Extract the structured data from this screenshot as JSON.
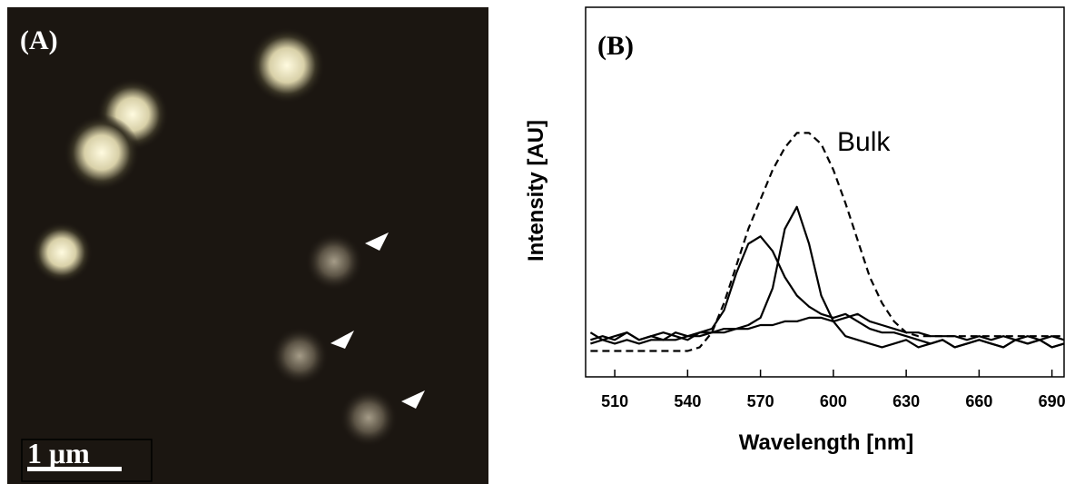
{
  "panel_a": {
    "label": "(A)",
    "scale_bar": "1 μm"
  },
  "chart_data": {
    "type": "line",
    "label": "(B)",
    "annotation": "Bulk",
    "xlabel": "Wavelength [nm]",
    "ylabel": "Intensity [AU]",
    "xlim": [
      498,
      695
    ],
    "xticks": [
      510,
      540,
      570,
      600,
      630,
      660,
      690
    ],
    "ylim": [
      0,
      1
    ],
    "x": [
      500,
      505,
      510,
      515,
      520,
      525,
      530,
      535,
      540,
      545,
      550,
      555,
      560,
      565,
      570,
      575,
      580,
      585,
      590,
      595,
      600,
      605,
      610,
      615,
      620,
      625,
      630,
      635,
      640,
      645,
      650,
      655,
      660,
      665,
      670,
      675,
      680,
      685,
      690,
      695
    ],
    "series": [
      {
        "color": "#000",
        "dashed": true,
        "values": [
          0.07,
          0.07,
          0.07,
          0.07,
          0.07,
          0.07,
          0.07,
          0.07,
          0.07,
          0.08,
          0.12,
          0.2,
          0.3,
          0.4,
          0.48,
          0.56,
          0.62,
          0.66,
          0.66,
          0.63,
          0.56,
          0.47,
          0.37,
          0.27,
          0.2,
          0.15,
          0.12,
          0.11,
          0.11,
          0.11,
          0.11,
          0.11,
          0.11,
          0.11,
          0.11,
          0.11,
          0.11,
          0.11,
          0.11,
          0.11
        ]
      },
      {
        "color": "#000",
        "dashed": false,
        "values": [
          0.12,
          0.1,
          0.11,
          0.12,
          0.1,
          0.11,
          0.12,
          0.11,
          0.1,
          0.12,
          0.13,
          0.18,
          0.28,
          0.36,
          0.38,
          0.34,
          0.27,
          0.22,
          0.19,
          0.17,
          0.16,
          0.17,
          0.15,
          0.13,
          0.12,
          0.12,
          0.11,
          0.1,
          0.09,
          0.1,
          0.08,
          0.09,
          0.1,
          0.09,
          0.08,
          0.1,
          0.09,
          0.1,
          0.08,
          0.09
        ]
      },
      {
        "color": "#000",
        "dashed": false,
        "values": [
          0.1,
          0.11,
          0.1,
          0.12,
          0.1,
          0.11,
          0.1,
          0.12,
          0.11,
          0.12,
          0.12,
          0.13,
          0.13,
          0.14,
          0.16,
          0.24,
          0.4,
          0.46,
          0.36,
          0.22,
          0.15,
          0.11,
          0.1,
          0.09,
          0.08,
          0.09,
          0.1,
          0.08,
          0.09,
          0.1,
          0.08,
          0.09,
          0.1,
          0.09,
          0.08,
          0.1,
          0.09,
          0.1,
          0.08,
          0.09
        ]
      },
      {
        "color": "#000",
        "dashed": false,
        "values": [
          0.09,
          0.1,
          0.09,
          0.1,
          0.09,
          0.1,
          0.1,
          0.1,
          0.11,
          0.11,
          0.12,
          0.12,
          0.13,
          0.13,
          0.14,
          0.14,
          0.15,
          0.15,
          0.16,
          0.16,
          0.15,
          0.16,
          0.17,
          0.15,
          0.14,
          0.13,
          0.12,
          0.12,
          0.11,
          0.11,
          0.11,
          0.1,
          0.11,
          0.1,
          0.11,
          0.1,
          0.11,
          0.1,
          0.11,
          0.1
        ]
      }
    ]
  }
}
